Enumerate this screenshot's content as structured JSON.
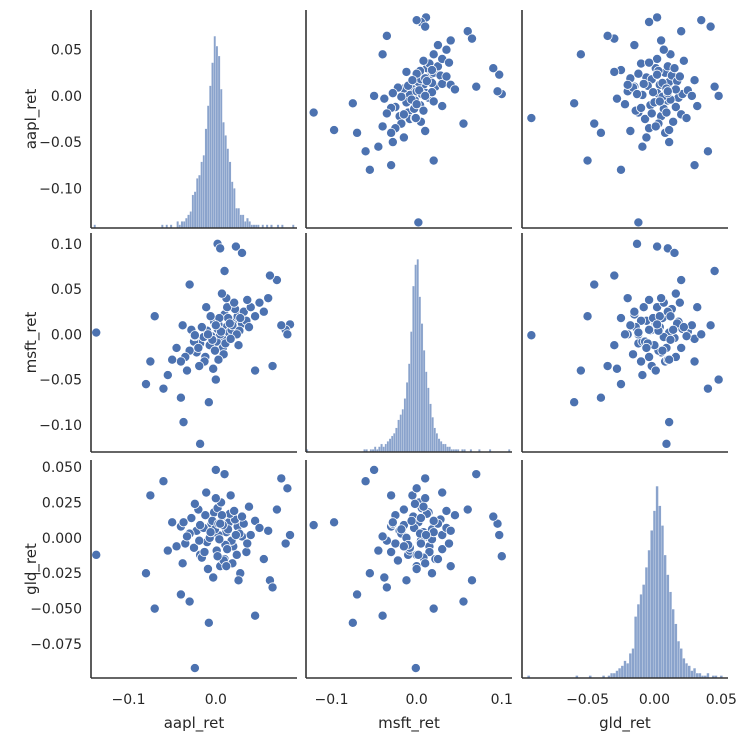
{
  "chart_data": {
    "type": "pairplot",
    "variables": [
      "aapl_ret",
      "msft_ret",
      "gld_ret"
    ],
    "axis_labels": [
      "aapl_ret",
      "msft_ret",
      "gld_ret"
    ],
    "ranges": {
      "aapl_ret": [
        -0.143,
        0.093
      ],
      "msft_ret": [
        -0.13,
        0.112
      ],
      "gld_ret": [
        -0.099,
        0.055
      ]
    },
    "ticks": {
      "aapl_ret": {
        "x": [
          {
            "v": -0.1,
            "label": "−0.1"
          },
          {
            "v": 0.0,
            "label": "0.0"
          }
        ],
        "y": [
          {
            "v": 0.05,
            "label": "0.05"
          },
          {
            "v": 0.0,
            "label": "0.00"
          },
          {
            "v": -0.05,
            "label": "−0.05"
          },
          {
            "v": -0.1,
            "label": "−0.10"
          }
        ]
      },
      "msft_ret": {
        "x": [
          {
            "v": -0.1,
            "label": "−0.1"
          },
          {
            "v": 0.0,
            "label": "0.0"
          },
          {
            "v": 0.1,
            "label": "0.1"
          }
        ],
        "y": [
          {
            "v": 0.1,
            "label": "0.10"
          },
          {
            "v": 0.05,
            "label": "0.05"
          },
          {
            "v": 0.0,
            "label": "0.00"
          },
          {
            "v": -0.05,
            "label": "−0.05"
          },
          {
            "v": -0.1,
            "label": "−0.10"
          }
        ]
      },
      "gld_ret": {
        "x": [
          {
            "v": -0.05,
            "label": "−0.05"
          },
          {
            "v": 0.0,
            "label": "0.00"
          },
          {
            "v": 0.05,
            "label": "0.05"
          }
        ],
        "y": [
          {
            "v": 0.05,
            "label": "0.050"
          },
          {
            "v": 0.025,
            "label": "0.025"
          },
          {
            "v": 0.0,
            "label": "0.000"
          },
          {
            "v": -0.025,
            "label": "−0.025"
          },
          {
            "v": -0.05,
            "label": "−0.050"
          },
          {
            "v": -0.075,
            "label": "−0.075"
          }
        ]
      }
    },
    "grid": false,
    "colors": {
      "points": "#4c72b0",
      "hist": "#4c72b0",
      "spine": "#333333",
      "text": "#262626"
    },
    "points": [
      [
        0.012,
        0.008,
        0.004
      ],
      [
        -0.005,
        -0.002,
        0.01
      ],
      [
        0.02,
        0.015,
        -0.006
      ],
      [
        0.003,
        0.011,
        0.002
      ],
      [
        -0.018,
        -0.01,
        -0.012
      ],
      [
        0.007,
        -0.004,
        0.015
      ],
      [
        0.025,
        0.02,
        0.008
      ],
      [
        -0.01,
        0.004,
        -0.003
      ],
      [
        0.015,
        0.002,
        0.011
      ],
      [
        -0.022,
        -0.02,
        0.005
      ],
      [
        0.001,
        -0.008,
        -0.009
      ],
      [
        0.03,
        0.012,
        0.001
      ],
      [
        -0.002,
        0.014,
        0.018
      ],
      [
        0.01,
        0.022,
        -0.015
      ],
      [
        -0.014,
        -0.003,
        0.007
      ],
      [
        0.018,
        0.005,
        -0.002
      ],
      [
        -0.03,
        -0.018,
        0.003
      ],
      [
        0.005,
        0.0,
        -0.02
      ],
      [
        0.022,
        0.028,
        0.013
      ],
      [
        -0.007,
        -0.012,
        0.0
      ],
      [
        0.014,
        0.018,
        0.006
      ],
      [
        -0.025,
        -0.008,
        -0.007
      ],
      [
        0.008,
        -0.015,
        0.009
      ],
      [
        0.035,
        0.015,
        -0.01
      ],
      [
        -0.012,
        -0.025,
        0.016
      ],
      [
        0.002,
        0.006,
        0.021
      ],
      [
        0.019,
        0.01,
        -0.018
      ],
      [
        -0.004,
        -0.006,
        0.012
      ],
      [
        0.027,
        0.004,
        0.003
      ],
      [
        -0.016,
        0.008,
        -0.014
      ],
      [
        0.011,
        -0.01,
        -0.005
      ],
      [
        -0.02,
        -0.015,
        0.02
      ],
      [
        0.004,
        0.018,
        -0.001
      ],
      [
        0.032,
        0.025,
        0.01
      ],
      [
        -0.009,
        0.0,
        -0.022
      ],
      [
        0.016,
        0.012,
        0.017
      ],
      [
        -0.035,
        -0.025,
        -0.004
      ],
      [
        0.006,
        0.003,
        0.025
      ],
      [
        0.024,
        0.0,
        -0.012
      ],
      [
        -0.001,
        -0.018,
        0.006
      ],
      [
        0.04,
        0.03,
        0.002
      ],
      [
        -0.04,
        -0.03,
        0.008
      ],
      [
        0.013,
        0.03,
        -0.008
      ],
      [
        -0.028,
        0.005,
        0.014
      ],
      [
        0.009,
        -0.022,
        -0.016
      ],
      [
        0.021,
        0.035,
        0.019
      ],
      [
        -0.013,
        -0.03,
        -0.01
      ],
      [
        0.0,
        0.01,
        0.028
      ],
      [
        0.028,
        0.018,
        -0.025
      ],
      [
        -0.006,
        0.02,
        0.004
      ],
      [
        0.045,
        0.02,
        0.012
      ],
      [
        -0.045,
        -0.015,
        -0.006
      ],
      [
        0.017,
        -0.005,
        0.03
      ],
      [
        -0.019,
        -0.035,
        -0.002
      ],
      [
        0.036,
        0.038,
        -0.004
      ],
      [
        0.003,
        -0.028,
        0.01
      ],
      [
        -0.024,
        -0.002,
        0.024
      ],
      [
        0.012,
        0.04,
        -0.02
      ],
      [
        0.05,
        0.035,
        0.007
      ],
      [
        -0.033,
        -0.04,
        0.001
      ],
      [
        0.055,
        0.025,
        -0.015
      ],
      [
        -0.05,
        -0.028,
        0.011
      ],
      [
        0.007,
        0.045,
        0.016
      ],
      [
        -0.003,
        -0.038,
        -0.028
      ],
      [
        0.038,
        0.008,
        0.022
      ],
      [
        -0.038,
        0.01,
        -0.018
      ],
      [
        0.026,
        -0.012,
        -0.03
      ],
      [
        -0.011,
        0.03,
        0.032
      ],
      [
        0.06,
        0.04,
        0.005
      ],
      [
        -0.055,
        -0.045,
        -0.009
      ],
      [
        -0.137,
        0.002,
        -0.012
      ],
      [
        -0.024,
        -0.001,
        -0.092
      ],
      [
        -0.018,
        -0.121,
        0.009
      ],
      [
        -0.037,
        -0.097,
        0.011
      ],
      [
        0.002,
        0.1,
        -0.013
      ],
      [
        0.023,
        0.097,
        0.002
      ],
      [
        0.085,
        0.011,
        0.002
      ],
      [
        0.08,
        0.005,
        -0.004
      ],
      [
        0.005,
        0.095,
        0.01
      ],
      [
        0.03,
        0.09,
        0.015
      ],
      [
        0.07,
        0.06,
        0.02
      ],
      [
        -0.075,
        -0.03,
        0.03
      ],
      [
        -0.08,
        -0.055,
        -0.025
      ],
      [
        0.062,
        0.065,
        -0.03
      ],
      [
        -0.06,
        -0.06,
        0.04
      ],
      [
        0.01,
        0.07,
        0.045
      ],
      [
        -0.04,
        -0.07,
        -0.04
      ],
      [
        0.045,
        -0.04,
        -0.055
      ],
      [
        -0.07,
        0.02,
        -0.05
      ],
      [
        0.075,
        0.01,
        0.042
      ],
      [
        0.065,
        -0.035,
        -0.035
      ],
      [
        -0.008,
        -0.075,
        -0.06
      ],
      [
        0.0,
        -0.05,
        0.048
      ],
      [
        -0.03,
        0.055,
        -0.045
      ],
      [
        0.082,
        0.0,
        0.035
      ]
    ],
    "histograms": {
      "aapl_ret": {
        "start": -0.14,
        "bin_width": 0.0025,
        "counts": [
          1,
          0,
          0,
          0,
          0,
          0,
          0,
          0,
          0,
          0,
          0,
          0,
          0,
          0,
          0,
          0,
          0,
          0,
          0,
          0,
          0,
          0,
          0,
          0,
          0,
          0,
          0,
          0,
          0,
          0,
          0,
          1,
          0,
          1,
          0,
          1,
          0,
          0,
          2,
          1,
          2,
          2,
          3,
          4,
          5,
          10,
          11,
          15,
          16,
          20,
          22,
          30,
          37,
          43,
          50,
          58,
          55,
          52,
          42,
          32,
          28,
          24,
          20,
          14,
          12,
          6,
          6,
          4,
          4,
          2,
          3,
          2,
          1,
          1,
          1,
          1,
          0,
          1,
          0,
          1,
          0,
          1,
          0,
          0,
          1,
          0,
          1,
          0,
          0,
          0,
          0,
          1
        ]
      },
      "msft_ret": {
        "start": -0.13,
        "bin_width": 0.0025,
        "counts": [
          1,
          0,
          0,
          0,
          0,
          0,
          0,
          0,
          0,
          0,
          0,
          0,
          0,
          0,
          0,
          0,
          0,
          0,
          0,
          0,
          0,
          0,
          0,
          0,
          0,
          0,
          0,
          1,
          1,
          0,
          1,
          1,
          2,
          1,
          2,
          3,
          2,
          3,
          4,
          5,
          6,
          7,
          9,
          12,
          14,
          16,
          20,
          26,
          33,
          45,
          62,
          70,
          72,
          58,
          48,
          38,
          30,
          24,
          18,
          13,
          9,
          7,
          5,
          4,
          3,
          3,
          2,
          2,
          1,
          1,
          1,
          1,
          0,
          1,
          1,
          0,
          0,
          1,
          0,
          0,
          0,
          1,
          0,
          0,
          0,
          0,
          1,
          0,
          0,
          0,
          0,
          0,
          0,
          0,
          0,
          1
        ]
      },
      "gld_ret": {
        "start": -0.095,
        "bin_width": 0.002,
        "counts": [
          1,
          0,
          0,
          0,
          0,
          0,
          0,
          0,
          0,
          0,
          0,
          0,
          0,
          0,
          0,
          0,
          0,
          0,
          1,
          0,
          0,
          0,
          0,
          1,
          0,
          0,
          0,
          0,
          1,
          0,
          1,
          2,
          2,
          3,
          4,
          5,
          7,
          6,
          10,
          12,
          25,
          30,
          34,
          38,
          45,
          52,
          60,
          68,
          78,
          70,
          62,
          50,
          42,
          35,
          28,
          22,
          15,
          12,
          8,
          6,
          5,
          3,
          4,
          2,
          2,
          1,
          1,
          2,
          0,
          1,
          1,
          0,
          1,
          0,
          0
        ]
      }
    }
  }
}
